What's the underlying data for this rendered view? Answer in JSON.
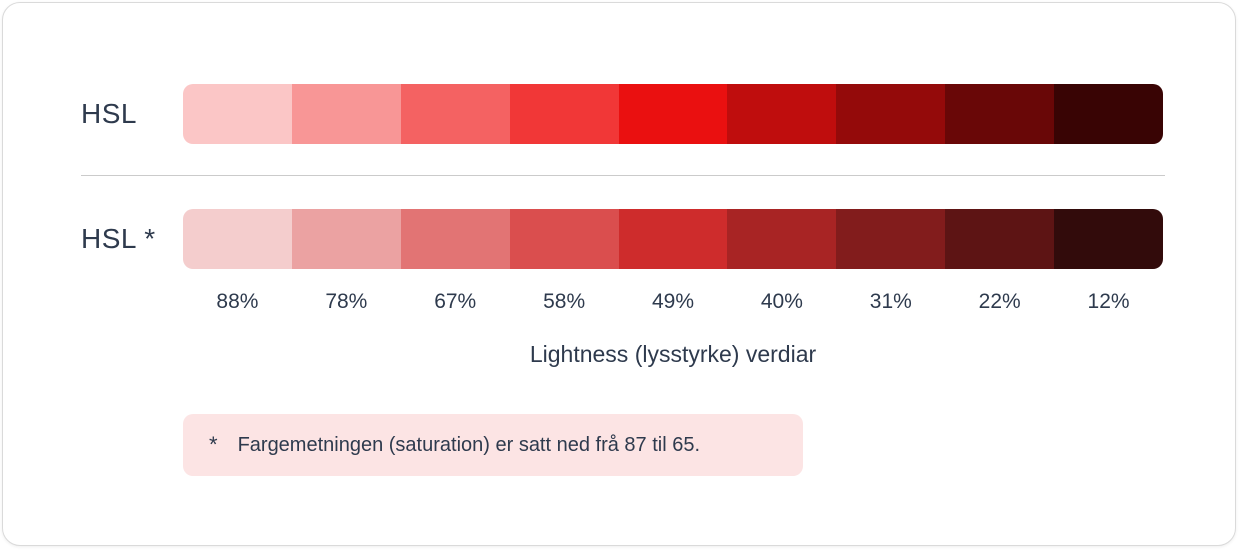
{
  "figure": {
    "axis_caption": "Lightness (lysstyrke) verdiar",
    "note": {
      "marker": "*",
      "text": "Fargemetningen (saturation) er satt ned frå 87 til 65."
    }
  },
  "palette": {
    "hue": 0,
    "lightness_values": [
      88,
      78,
      67,
      58,
      49,
      40,
      31,
      22,
      12
    ],
    "lightness_labels": [
      "88%",
      "78%",
      "67%",
      "58%",
      "49%",
      "40%",
      "31%",
      "22%",
      "12%"
    ],
    "rows": [
      {
        "label": "HSL",
        "saturation": 87,
        "colors": [
          "hsl(0, 87%, 88%)",
          "hsl(0, 87%, 78%)",
          "hsl(0, 87%, 67%)",
          "hsl(0, 87%, 58%)",
          "hsl(0, 87%, 49%)",
          "hsl(0, 87%, 40%)",
          "hsl(0, 87%, 31%)",
          "hsl(0, 87%, 22%)",
          "hsl(0, 87%, 12%)"
        ]
      },
      {
        "label": "HSL *",
        "saturation": 65,
        "colors": [
          "hsl(0, 65%, 88%)",
          "hsl(0, 65%, 78%)",
          "hsl(0, 65%, 67%)",
          "hsl(0, 65%, 58%)",
          "hsl(0, 65%, 49%)",
          "hsl(0, 65%, 40%)",
          "hsl(0, 65%, 31%)",
          "hsl(0, 65%, 22%)",
          "hsl(0, 65%, 12%)"
        ]
      }
    ]
  },
  "colors": {
    "text": "#2e3a4d",
    "divider": "#cbcbcb",
    "note_background": "#fce4e4",
    "card_background": "#ffffff",
    "card_border": "#dadada"
  }
}
